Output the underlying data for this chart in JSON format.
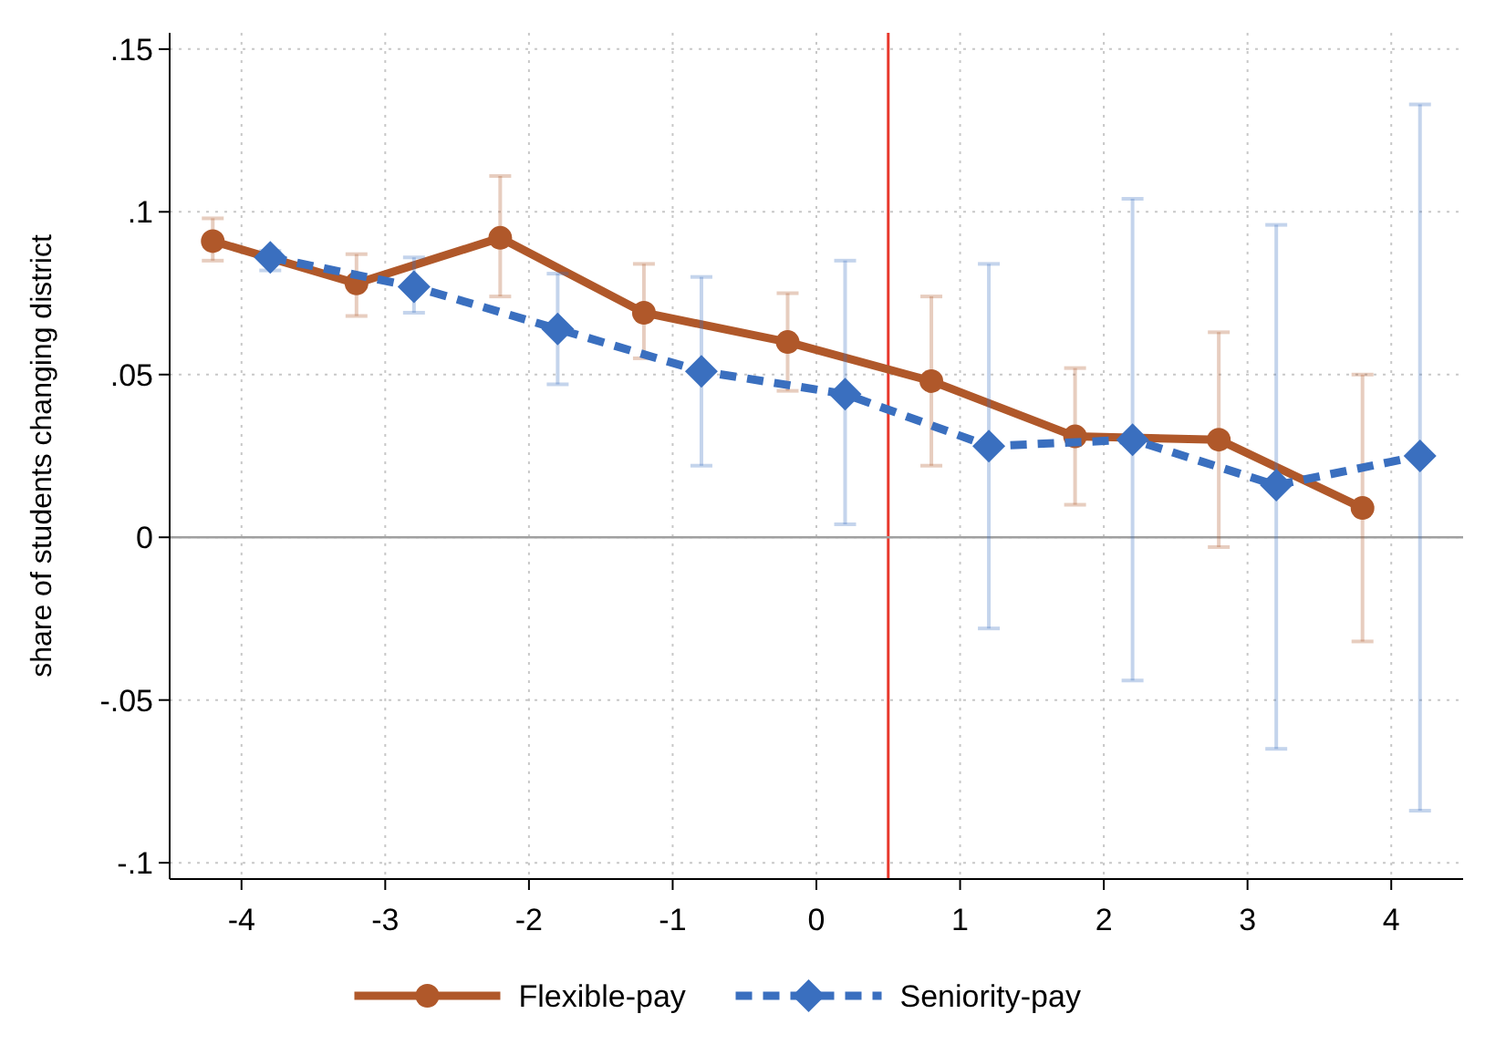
{
  "chart_data": {
    "type": "line",
    "ylabel": "share of students changing district",
    "xlim": [
      -4.5,
      4.5
    ],
    "xticks": [
      -4,
      -3,
      -2,
      -1,
      0,
      1,
      2,
      3,
      4
    ],
    "ylim": [
      -0.105,
      0.155
    ],
    "yticks": [
      {
        "value": 0.15,
        "label": ".15"
      },
      {
        "value": 0.1,
        "label": ".1"
      },
      {
        "value": 0.05,
        "label": ".05"
      },
      0,
      {
        "value": -0.05,
        "label": "-.05"
      },
      {
        "value": -0.1,
        "label": "-.1"
      }
    ],
    "grid": true,
    "legend": "bottom",
    "ref_lines": [
      {
        "axis": "x",
        "value": 0.5,
        "color": "#e8382c"
      },
      {
        "axis": "y",
        "value": 0,
        "color": "#a0a0a0"
      }
    ],
    "series": [
      {
        "name": "Flexible-pay",
        "color": "#b0582a",
        "marker": "circle",
        "line_style": "solid",
        "x": [
          -4.2,
          -3.2,
          -2.2,
          -1.2,
          -0.2,
          0.8,
          1.8,
          2.8,
          3.8
        ],
        "values": [
          0.091,
          0.078,
          0.092,
          0.069,
          0.06,
          0.048,
          0.031,
          0.03,
          0.009
        ],
        "errors": [
          [
            0.085,
            0.098
          ],
          [
            0.068,
            0.087
          ],
          [
            0.074,
            0.111
          ],
          [
            0.055,
            0.084
          ],
          [
            0.045,
            0.075
          ],
          [
            0.022,
            0.074
          ],
          [
            0.01,
            0.052
          ],
          [
            -0.003,
            0.063
          ],
          [
            -0.032,
            0.05
          ]
        ]
      },
      {
        "name": "Seniority-pay",
        "color": "#3a6fbf",
        "marker": "diamond",
        "line_style": "dashed",
        "x": [
          -3.8,
          -2.8,
          -1.8,
          -0.8,
          0.2,
          1.2,
          2.2,
          3.2,
          4.2
        ],
        "values": [
          0.086,
          0.077,
          0.064,
          0.051,
          0.044,
          0.028,
          0.03,
          0.016,
          0.025
        ],
        "errors": [
          [
            0.082,
            0.088
          ],
          [
            0.069,
            0.086
          ],
          [
            0.047,
            0.081
          ],
          [
            0.022,
            0.08
          ],
          [
            0.004,
            0.085
          ],
          [
            -0.028,
            0.084
          ],
          [
            -0.044,
            0.104
          ],
          [
            -0.065,
            0.096
          ],
          [
            -0.084,
            0.133
          ]
        ]
      }
    ]
  }
}
